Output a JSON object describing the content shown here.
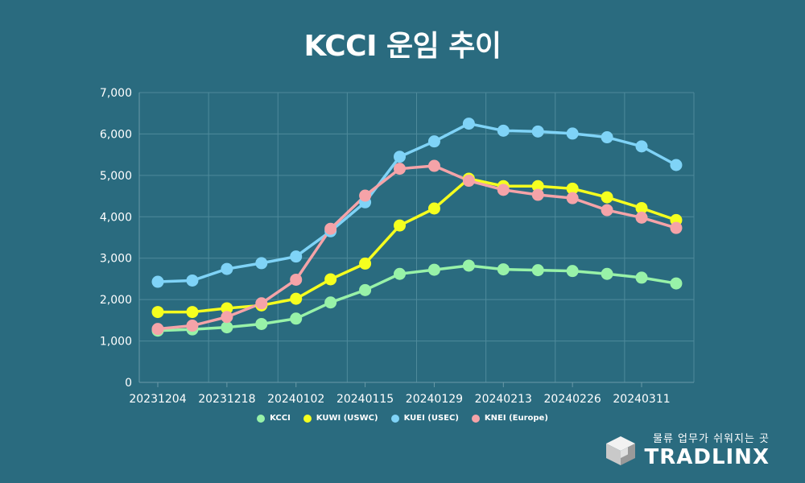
{
  "title": "KCCI 운임 추이",
  "chart_data": {
    "type": "line",
    "title": "KCCI 운임 추이",
    "x": [
      "20231204",
      "20231211",
      "20231218",
      "20231225",
      "20240102",
      "20240108",
      "20240115",
      "20240122",
      "20240129",
      "20240205",
      "20240213",
      "20240219",
      "20240226",
      "20240304",
      "20240311",
      "20240318"
    ],
    "x_tick_labels": [
      "20231204",
      "20231218",
      "20240102",
      "20240115",
      "20240129",
      "20240213",
      "20240226",
      "20240311"
    ],
    "y_tick_labels": [
      "0",
      "1,000",
      "2,000",
      "3,000",
      "4,000",
      "5,000",
      "6,000",
      "7,000"
    ],
    "ylim": [
      0,
      7000
    ],
    "grid": true,
    "legend_position": "bottom",
    "series": [
      {
        "name": "KCCI",
        "color": "#98f2a8",
        "values": [
          1250,
          1280,
          1330,
          1410,
          1540,
          1930,
          2230,
          2620,
          2720,
          2820,
          2730,
          2710,
          2690,
          2620,
          2530,
          2390
        ]
      },
      {
        "name": "KUWI (USWC)",
        "color": "#f5ff1f",
        "values": [
          1700,
          1700,
          1790,
          1860,
          2020,
          2490,
          2870,
          3790,
          4200,
          4920,
          4740,
          4740,
          4680,
          4470,
          4210,
          3920
        ]
      },
      {
        "name": "KUEI (USEC)",
        "color": "#7fd3f7",
        "values": [
          2430,
          2460,
          2740,
          2880,
          3040,
          3650,
          4350,
          5450,
          5820,
          6250,
          6080,
          6060,
          6010,
          5920,
          5700,
          5250
        ]
      },
      {
        "name": "KNEI (Europe)",
        "color": "#f5a3a8",
        "values": [
          1290,
          1370,
          1580,
          1910,
          2480,
          3710,
          4510,
          5160,
          5230,
          4870,
          4650,
          4530,
          4450,
          4160,
          3980,
          3730
        ]
      }
    ]
  },
  "brand": {
    "tagline": "물류 업무가 쉬워지는 곳",
    "name": "TRADLINX"
  }
}
